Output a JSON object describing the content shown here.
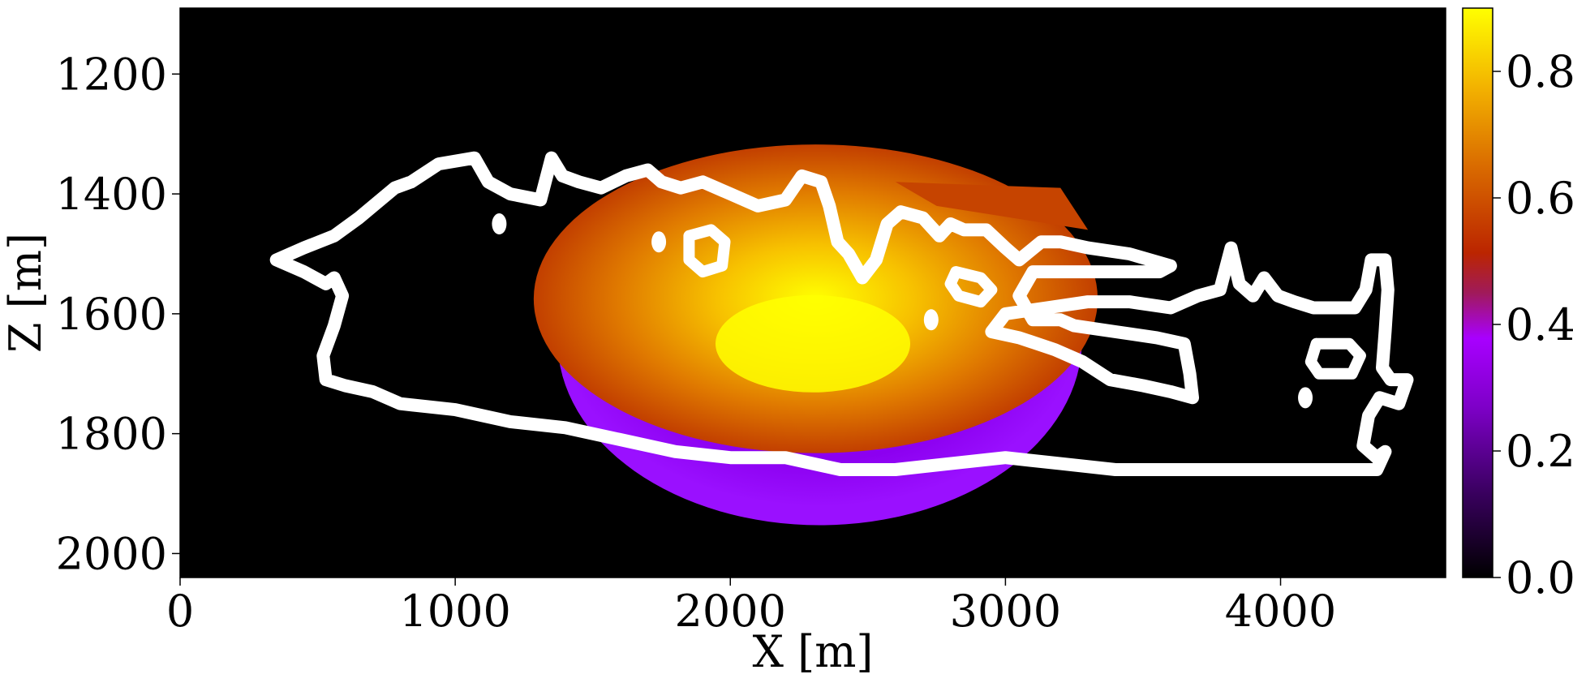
{
  "chart_data": {
    "type": "heatmap",
    "xlabel": "X [m]",
    "ylabel": "Z [m]",
    "xlim": [
      0,
      4600
    ],
    "ylim": [
      2040,
      1090
    ],
    "x_ticks": [
      0,
      1000,
      2000,
      3000,
      4000
    ],
    "x_tick_labels": [
      "0",
      "1000",
      "2000",
      "3000",
      "4000"
    ],
    "y_ticks": [
      1200,
      1400,
      1600,
      1800,
      2000
    ],
    "y_tick_labels": [
      "1200",
      "1400",
      "1600",
      "1800",
      "2000"
    ],
    "colorbar": {
      "colormap": "gnuplot",
      "range": [
        0.0,
        0.9
      ],
      "ticks": [
        0.0,
        0.2,
        0.4,
        0.6,
        0.8
      ],
      "tick_labels": [
        "0.0",
        "0.2",
        "0.4",
        "0.6",
        "0.8"
      ]
    },
    "field": {
      "description_shape": "saturation plume",
      "center": [
        2300,
        1650
      ],
      "peak_value": 0.9,
      "core_value": 0.6,
      "rim_value": 0.25,
      "x_extent": [
        1300,
        3350
      ],
      "z_extent": [
        1310,
        1950
      ]
    },
    "contour": {
      "color": "#ffffff",
      "outline": [
        [
          350,
          1510
        ],
        [
          450,
          1490
        ],
        [
          560,
          1470
        ],
        [
          650,
          1440
        ],
        [
          780,
          1390
        ],
        [
          840,
          1380
        ],
        [
          940,
          1350
        ],
        [
          1070,
          1340
        ],
        [
          1120,
          1380
        ],
        [
          1200,
          1400
        ],
        [
          1310,
          1410
        ],
        [
          1350,
          1340
        ],
        [
          1390,
          1370
        ],
        [
          1450,
          1380
        ],
        [
          1530,
          1390
        ],
        [
          1620,
          1370
        ],
        [
          1700,
          1360
        ],
        [
          1750,
          1380
        ],
        [
          1820,
          1390
        ],
        [
          1900,
          1380
        ],
        [
          2000,
          1400
        ],
        [
          2100,
          1420
        ],
        [
          2200,
          1410
        ],
        [
          2260,
          1370
        ],
        [
          2330,
          1380
        ],
        [
          2360,
          1420
        ],
        [
          2390,
          1480
        ],
        [
          2430,
          1500
        ],
        [
          2480,
          1540
        ],
        [
          2530,
          1510
        ],
        [
          2570,
          1450
        ],
        [
          2620,
          1430
        ],
        [
          2700,
          1440
        ],
        [
          2760,
          1470
        ],
        [
          2800,
          1450
        ],
        [
          2850,
          1460
        ],
        [
          2930,
          1460
        ],
        [
          3000,
          1490
        ],
        [
          3050,
          1510
        ],
        [
          3130,
          1480
        ],
        [
          3200,
          1480
        ],
        [
          3300,
          1490
        ],
        [
          3450,
          1500
        ],
        [
          3600,
          1520
        ],
        [
          3560,
          1530
        ],
        [
          3300,
          1530
        ],
        [
          3100,
          1530
        ],
        [
          3050,
          1570
        ],
        [
          3100,
          1610
        ],
        [
          3200,
          1610
        ],
        [
          3250,
          1620
        ],
        [
          3400,
          1630
        ],
        [
          3550,
          1640
        ],
        [
          3650,
          1650
        ],
        [
          3670,
          1700
        ],
        [
          3680,
          1740
        ],
        [
          3600,
          1730
        ],
        [
          3500,
          1720
        ],
        [
          3380,
          1710
        ],
        [
          3280,
          1680
        ],
        [
          3180,
          1660
        ],
        [
          3050,
          1640
        ],
        [
          2950,
          1630
        ],
        [
          3000,
          1600
        ],
        [
          3150,
          1590
        ],
        [
          3300,
          1580
        ],
        [
          3450,
          1580
        ],
        [
          3600,
          1590
        ],
        [
          3700,
          1570
        ],
        [
          3780,
          1560
        ],
        [
          3820,
          1490
        ],
        [
          3850,
          1550
        ],
        [
          3900,
          1570
        ],
        [
          3940,
          1540
        ],
        [
          3990,
          1570
        ],
        [
          4050,
          1580
        ],
        [
          4120,
          1590
        ],
        [
          4200,
          1590
        ],
        [
          4270,
          1590
        ],
        [
          4310,
          1560
        ],
        [
          4330,
          1510
        ],
        [
          4380,
          1510
        ],
        [
          4390,
          1560
        ],
        [
          4380,
          1630
        ],
        [
          4370,
          1690
        ],
        [
          4400,
          1710
        ],
        [
          4460,
          1710
        ],
        [
          4430,
          1750
        ],
        [
          4360,
          1740
        ],
        [
          4320,
          1770
        ],
        [
          4300,
          1820
        ],
        [
          4350,
          1840
        ],
        [
          4380,
          1830
        ],
        [
          4350,
          1860
        ],
        [
          4200,
          1860
        ],
        [
          4000,
          1860
        ],
        [
          3800,
          1860
        ],
        [
          3600,
          1860
        ],
        [
          3400,
          1860
        ],
        [
          3200,
          1850
        ],
        [
          3000,
          1840
        ],
        [
          2800,
          1850
        ],
        [
          2600,
          1860
        ],
        [
          2400,
          1860
        ],
        [
          2200,
          1840
        ],
        [
          2000,
          1840
        ],
        [
          1800,
          1830
        ],
        [
          1600,
          1810
        ],
        [
          1400,
          1790
        ],
        [
          1200,
          1780
        ],
        [
          1000,
          1760
        ],
        [
          800,
          1750
        ],
        [
          700,
          1730
        ],
        [
          600,
          1720
        ],
        [
          530,
          1710
        ],
        [
          520,
          1670
        ],
        [
          560,
          1620
        ],
        [
          590,
          1570
        ],
        [
          560,
          1540
        ],
        [
          530,
          1550
        ],
        [
          450,
          1530
        ],
        [
          350,
          1510
        ]
      ],
      "islands": [
        [
          [
            1850,
            1470
          ],
          [
            1930,
            1460
          ],
          [
            1980,
            1480
          ],
          [
            1970,
            1520
          ],
          [
            1900,
            1530
          ],
          [
            1850,
            1510
          ],
          [
            1850,
            1470
          ]
        ],
        [
          [
            4130,
            1650
          ],
          [
            4250,
            1650
          ],
          [
            4290,
            1670
          ],
          [
            4260,
            1700
          ],
          [
            4140,
            1700
          ],
          [
            4110,
            1680
          ],
          [
            4130,
            1650
          ]
        ],
        [
          [
            2820,
            1530
          ],
          [
            2910,
            1540
          ],
          [
            2950,
            1560
          ],
          [
            2910,
            1580
          ],
          [
            2830,
            1570
          ],
          [
            2800,
            1550
          ],
          [
            2820,
            1530
          ]
        ]
      ],
      "dots": [
        [
          1740,
          1480
        ],
        [
          2730,
          1610
        ],
        [
          4090,
          1740
        ],
        [
          1160,
          1450
        ]
      ]
    }
  }
}
